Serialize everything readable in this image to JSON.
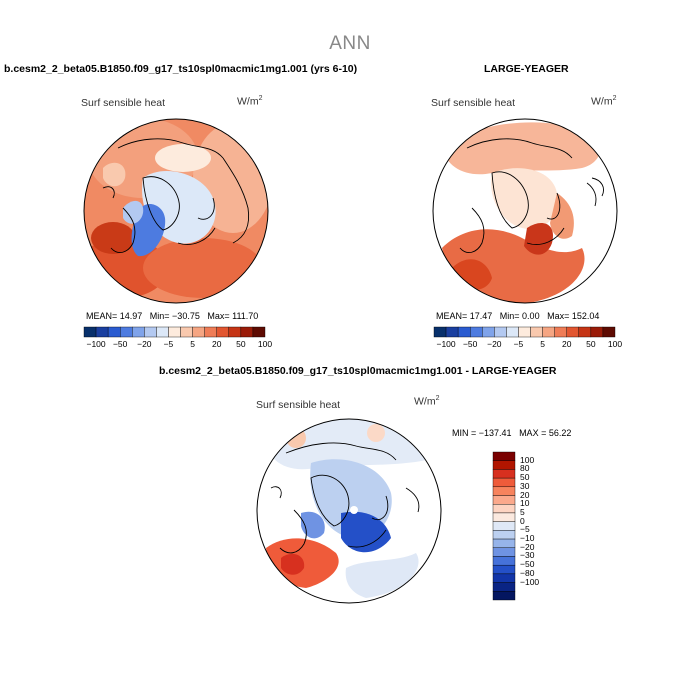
{
  "title": "ANN",
  "panels": {
    "left": {
      "title": "b.cesm2_2_beta05.B1850.f09_g17_ts10spl0macmic1mg1.001 (yrs 6-10)",
      "variable": "Surf sensible heat",
      "units": "W/m",
      "units_exp": "2",
      "mean": "MEAN=  14.97",
      "min": "Min=  −30.75",
      "max": "Max=  111.70"
    },
    "right": {
      "title": "LARGE-YEAGER",
      "variable": "Surf sensible heat",
      "units": "W/m",
      "units_exp": "2",
      "mean": "MEAN=  17.47",
      "min": "Min=   0.00",
      "max": "Max=  152.04"
    },
    "diff": {
      "title": "b.cesm2_2_beta05.B1850.f09_g17_ts10spl0macmic1mg1.001 - LARGE-YEAGER",
      "variable": "Surf sensible heat",
      "units": "W/m",
      "units_exp": "2",
      "min": "MIN = −137.41",
      "max": "MAX =  56.22"
    }
  },
  "colorbar_horizontal": {
    "colors": [
      "#08306b",
      "#1a3fa0",
      "#2a5bd0",
      "#4d7be0",
      "#7fa3ea",
      "#b3c9f1",
      "#dce8f8",
      "#fdebdd",
      "#f9c9ae",
      "#f5a582",
      "#ef7c56",
      "#e25630",
      "#c53415",
      "#9a1b08",
      "#5e0b02"
    ],
    "labels": [
      "−100",
      "−50",
      "−20",
      "−5",
      "5",
      "20",
      "50",
      "100"
    ]
  },
  "colorbar_vertical": {
    "colors": [
      "#7a0000",
      "#b11500",
      "#d7301f",
      "#ef5b3a",
      "#f7835d",
      "#fba98c",
      "#fdd4c2",
      "#fbe9df",
      "#dfe8f6",
      "#bcd0f0",
      "#96b4ea",
      "#6f93e3",
      "#4672da",
      "#2450c8",
      "#1235a8",
      "#0a2484",
      "#041660"
    ],
    "labels": [
      "100",
      "80",
      "50",
      "30",
      "20",
      "10",
      "5",
      "0",
      "−5",
      "−10",
      "−20",
      "−30",
      "−50",
      "−80",
      "−100"
    ]
  }
}
